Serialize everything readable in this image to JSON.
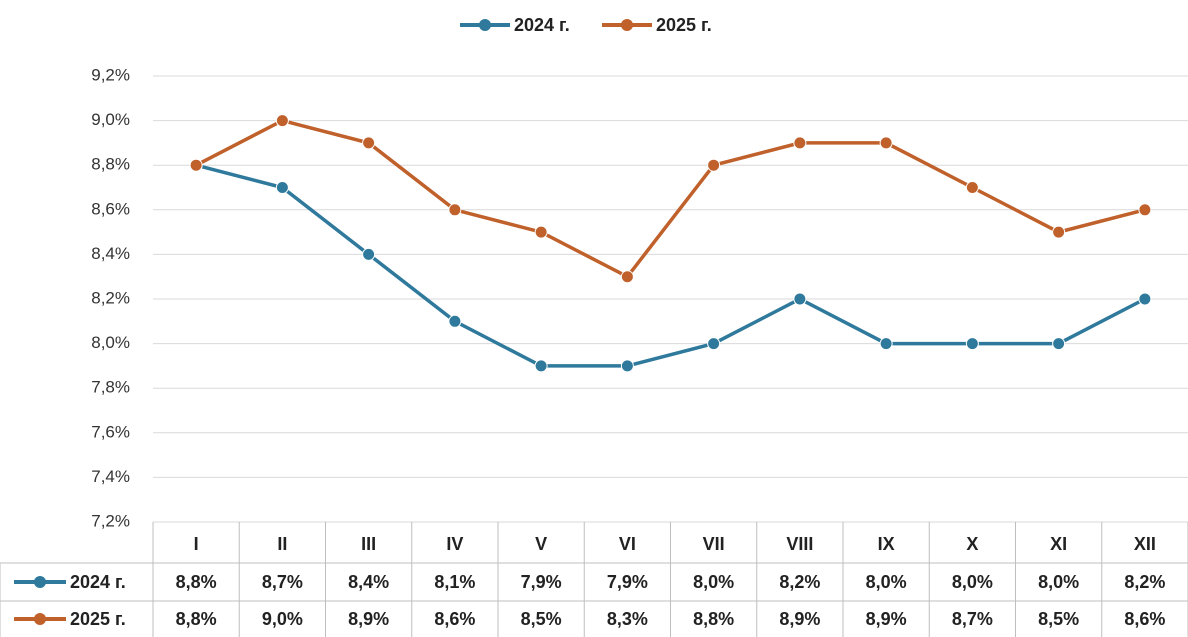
{
  "chart_data": {
    "type": "line",
    "categories": [
      "I",
      "II",
      "III",
      "IV",
      "V",
      "VI",
      "VII",
      "VIII",
      "IX",
      "X",
      "XI",
      "XII"
    ],
    "series": [
      {
        "name": "2024 г.",
        "color": "#2f7a9c",
        "values": [
          8.8,
          8.7,
          8.4,
          8.1,
          7.9,
          7.9,
          8.0,
          8.2,
          8.0,
          8.0,
          8.0,
          8.2
        ],
        "value_labels": [
          "8,8%",
          "8,7%",
          "8,4%",
          "8,1%",
          "7,9%",
          "7,9%",
          "8,0%",
          "8,2%",
          "8,0%",
          "8,0%",
          "8,0%",
          "8,2%"
        ]
      },
      {
        "name": "2025 г.",
        "color": "#c0602a",
        "values": [
          8.8,
          9.0,
          8.9,
          8.6,
          8.5,
          8.3,
          8.8,
          8.9,
          8.9,
          8.7,
          8.5,
          8.6
        ],
        "value_labels": [
          "8,8%",
          "9,0%",
          "8,9%",
          "8,6%",
          "8,5%",
          "8,3%",
          "8,8%",
          "8,9%",
          "8,9%",
          "8,7%",
          "8,5%",
          "8,6%"
        ]
      }
    ],
    "ylim": [
      7.2,
      9.2
    ],
    "yticks": [
      {
        "value": 7.2,
        "label": "7,2%"
      },
      {
        "value": 7.4,
        "label": "7,4%"
      },
      {
        "value": 7.6,
        "label": "7,6%"
      },
      {
        "value": 7.8,
        "label": "7,8%"
      },
      {
        "value": 8.0,
        "label": "8,0%"
      },
      {
        "value": 8.2,
        "label": "8,2%"
      },
      {
        "value": 8.4,
        "label": "8,4%"
      },
      {
        "value": 8.6,
        "label": "8,6%"
      },
      {
        "value": 8.8,
        "label": "8,8%"
      },
      {
        "value": 9.0,
        "label": "9,0%"
      },
      {
        "value": 9.2,
        "label": "9,2%"
      }
    ],
    "grid": true,
    "legend": "top"
  }
}
